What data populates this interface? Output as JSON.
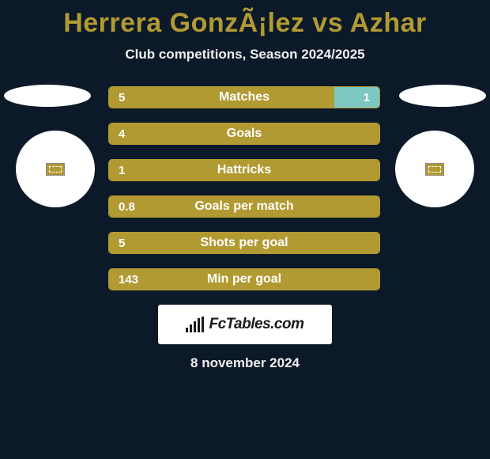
{
  "title": "Herrera GonzÃ¡lez vs Azhar",
  "subtitle": "Club competitions, Season 2024/2025",
  "date": "8 november 2024",
  "logo_text": "FcTables.com",
  "colors": {
    "background": "#0b1928",
    "accent": "#b29a33",
    "second_player": "#7dc8c2",
    "text_light": "#ffffff",
    "subtitle_text": "#f0f0f0"
  },
  "stats": [
    {
      "label": "Matches",
      "left_value": "5",
      "right_value": "1",
      "left_pct": 83.3,
      "right_pct": 16.7
    },
    {
      "label": "Goals",
      "left_value": "4",
      "right_value": "",
      "left_pct": 100,
      "right_pct": 0
    },
    {
      "label": "Hattricks",
      "left_value": "1",
      "right_value": "",
      "left_pct": 100,
      "right_pct": 0
    },
    {
      "label": "Goals per match",
      "left_value": "0.8",
      "right_value": "",
      "left_pct": 100,
      "right_pct": 0
    },
    {
      "label": "Shots per goal",
      "left_value": "5",
      "right_value": "",
      "left_pct": 100,
      "right_pct": 0
    },
    {
      "label": "Min per goal",
      "left_value": "143",
      "right_value": "",
      "left_pct": 100,
      "right_pct": 0
    }
  ]
}
